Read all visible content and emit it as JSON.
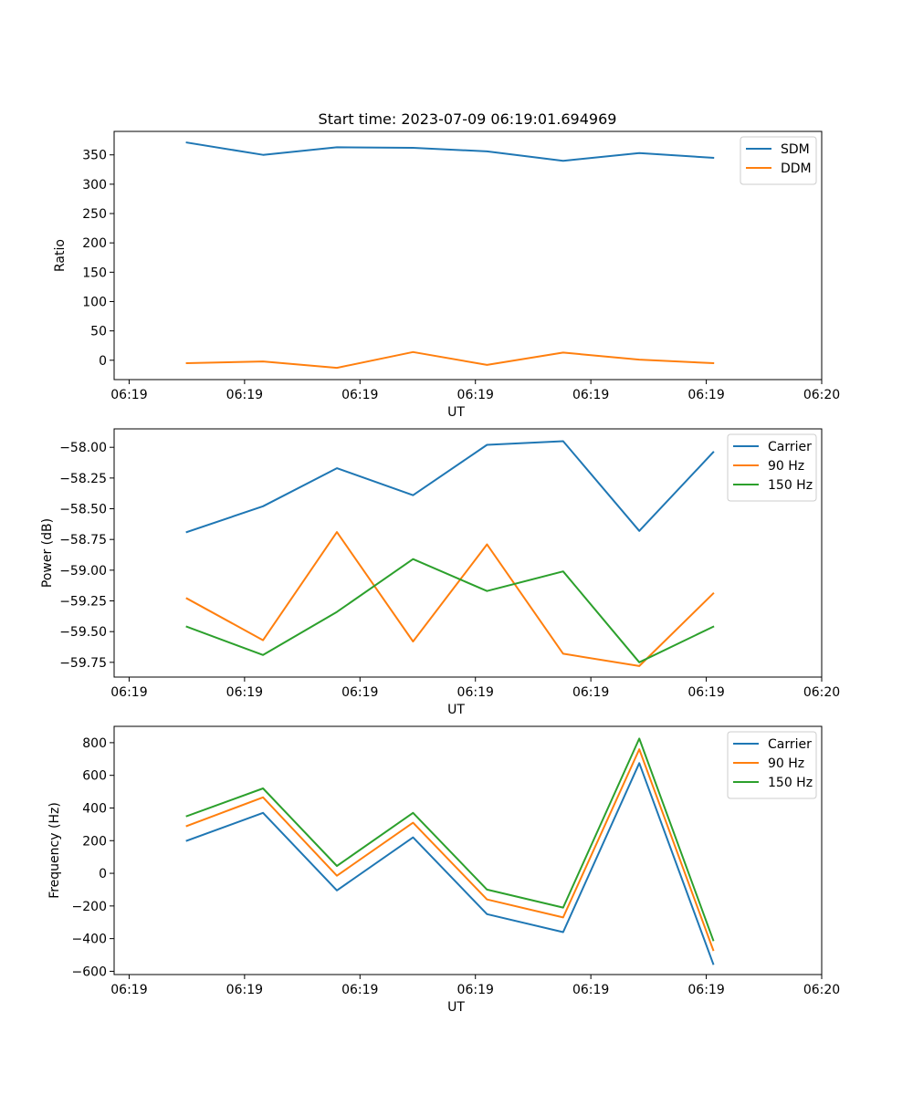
{
  "figure_title": "Start time: 2023-07-09 06:19:01.694969",
  "chart_data": [
    {
      "type": "line",
      "title": "Start time: 2023-07-09 06:19:01.694969",
      "xlabel": "UT",
      "ylabel": "Ratio",
      "x_tick_labels": [
        "06:19",
        "06:19",
        "06:19",
        "06:19",
        "06:19",
        "06:19",
        "06:20"
      ],
      "x_ticks": [
        0,
        1,
        2,
        3,
        4,
        5,
        6
      ],
      "xlim": [
        -0.13,
        6.0
      ],
      "yticks": [
        0,
        50,
        100,
        150,
        200,
        250,
        300,
        350
      ],
      "ylim": [
        -33,
        390
      ],
      "legend_position": "upper right",
      "x": [
        0.5,
        1.16,
        1.8,
        2.46,
        3.1,
        3.76,
        4.42,
        5.06
      ],
      "series": [
        {
          "name": "SDM",
          "color": "#1f77b4",
          "values": [
            371,
            350,
            363,
            362,
            356,
            340,
            353,
            345
          ]
        },
        {
          "name": "DDM",
          "color": "#ff7f0e",
          "values": [
            -5,
            -2,
            -13,
            14,
            -8,
            13,
            1,
            -5
          ]
        }
      ]
    },
    {
      "type": "line",
      "xlabel": "UT",
      "ylabel": "Power (dB)",
      "x_tick_labels": [
        "06:19",
        "06:19",
        "06:19",
        "06:19",
        "06:19",
        "06:19",
        "06:20"
      ],
      "x_ticks": [
        0,
        1,
        2,
        3,
        4,
        5,
        6
      ],
      "xlim": [
        -0.13,
        6.0
      ],
      "yticks": [
        -59.75,
        -59.5,
        -59.25,
        -59.0,
        -58.75,
        -58.5,
        -58.25,
        -58.0
      ],
      "ytick_labels": [
        "−59.75",
        "−59.50",
        "−59.25",
        "−59.00",
        "−58.75",
        "−58.50",
        "−58.25",
        "−58.00"
      ],
      "ylim": [
        -59.87,
        -57.85
      ],
      "legend_position": "upper right",
      "x": [
        0.5,
        1.16,
        1.8,
        2.46,
        3.1,
        3.76,
        4.42,
        5.06
      ],
      "series": [
        {
          "name": "Carrier",
          "color": "#1f77b4",
          "values": [
            -58.69,
            -58.48,
            -58.17,
            -58.39,
            -57.98,
            -57.95,
            -58.68,
            -58.04
          ]
        },
        {
          "name": "90 Hz",
          "color": "#ff7f0e",
          "values": [
            -59.23,
            -59.57,
            -58.69,
            -59.58,
            -58.79,
            -59.68,
            -59.78,
            -59.19
          ]
        },
        {
          "name": "150 Hz",
          "color": "#2ca02c",
          "values": [
            -59.46,
            -59.69,
            -59.34,
            -58.91,
            -59.17,
            -59.01,
            -59.75,
            -59.46
          ]
        }
      ]
    },
    {
      "type": "line",
      "xlabel": "UT",
      "ylabel": "Frequency (Hz)",
      "x_tick_labels": [
        "06:19",
        "06:19",
        "06:19",
        "06:19",
        "06:19",
        "06:19",
        "06:20"
      ],
      "x_ticks": [
        0,
        1,
        2,
        3,
        4,
        5,
        6
      ],
      "xlim": [
        -0.13,
        6.0
      ],
      "yticks": [
        -600,
        -400,
        -200,
        0,
        200,
        400,
        600,
        800
      ],
      "ytick_labels": [
        "−600",
        "−400",
        "−200",
        "0",
        "200",
        "400",
        "600",
        "800"
      ],
      "ylim": [
        -620,
        900
      ],
      "legend_position": "upper right",
      "x": [
        0.5,
        1.16,
        1.8,
        2.46,
        3.1,
        3.76,
        4.42,
        5.06
      ],
      "series": [
        {
          "name": "Carrier",
          "color": "#1f77b4",
          "values": [
            200,
            370,
            -105,
            220,
            -250,
            -360,
            675,
            -555
          ]
        },
        {
          "name": "90 Hz",
          "color": "#ff7f0e",
          "values": [
            290,
            465,
            -15,
            310,
            -160,
            -270,
            760,
            -470
          ]
        },
        {
          "name": "150 Hz",
          "color": "#2ca02c",
          "values": [
            350,
            520,
            45,
            370,
            -100,
            -210,
            825,
            -410
          ]
        }
      ]
    }
  ]
}
